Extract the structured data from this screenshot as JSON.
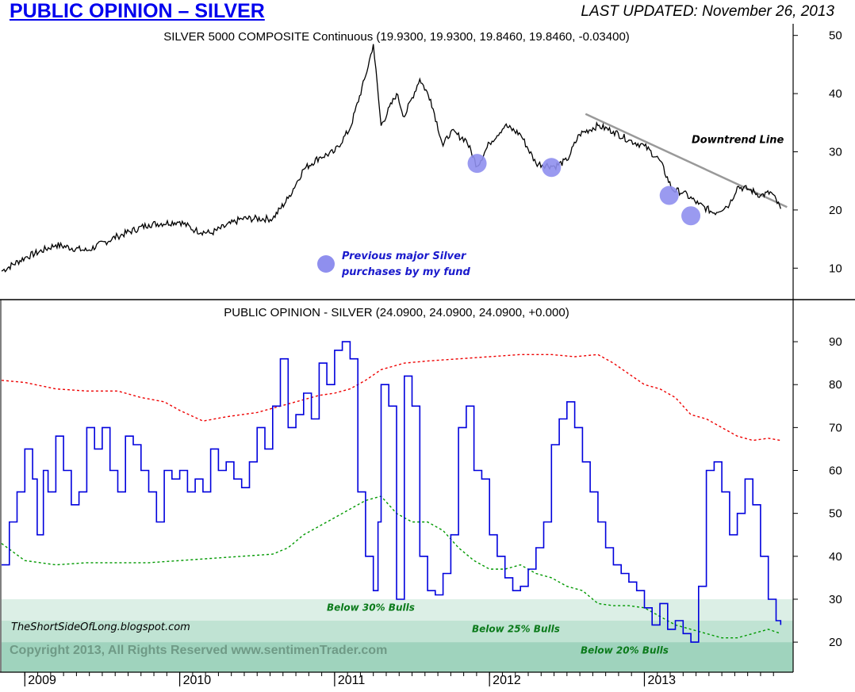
{
  "header": {
    "title": "PUBLIC OPINION – SILVER",
    "last_updated": "LAST UPDATED:  November 26, 2013"
  },
  "colors": {
    "price_line": "#000000",
    "opinion_line": "#0000dd",
    "upper_band": "#ee0000",
    "lower_band": "#009900",
    "circle_fill": "#8f8fee",
    "trendline": "#999999",
    "zone_30": "#dcefe6",
    "zone_25": "#c0e3d3",
    "zone_20": "#9fd3bd",
    "annotation_blue": "#1a1acc",
    "annotation_green": "#0a7a1a"
  },
  "chart_data": [
    {
      "type": "line",
      "title": "SILVER 5000 COMPOSITE Continuous (19.9300, 19.9300, 19.8460, 19.8460, -0.03400)",
      "ylim": [
        5,
        52
      ],
      "yticks": [
        10,
        20,
        30,
        40,
        50
      ],
      "series": [],
      "x": [
        2008.85,
        2009.0,
        2009.2,
        2009.4,
        2009.6,
        2009.8,
        2010.0,
        2010.1,
        2010.2,
        2010.4,
        2010.6,
        2010.7,
        2010.8,
        2010.9,
        2011.0,
        2011.1,
        2011.2,
        2011.25,
        2011.3,
        2011.4,
        2011.45,
        2011.55,
        2011.62,
        2011.7,
        2011.75,
        2011.85,
        2011.92,
        2012.0,
        2012.1,
        2012.2,
        2012.3,
        2012.42,
        2012.5,
        2012.58,
        2012.7,
        2012.8,
        2012.9,
        2013.0,
        2013.1,
        2013.18,
        2013.25,
        2013.35,
        2013.45,
        2013.55,
        2013.6,
        2013.68,
        2013.75,
        2013.82,
        2013.88
      ],
      "y": [
        9.5,
        11.8,
        14.0,
        13.0,
        15.5,
        17.5,
        18.0,
        16.5,
        16.0,
        18.5,
        18.5,
        22.0,
        27.0,
        29.0,
        30.0,
        34.0,
        43.0,
        48.5,
        34.5,
        40.0,
        36.0,
        42.5,
        39.0,
        31.0,
        33.5,
        32.0,
        27.5,
        31.5,
        34.5,
        33.0,
        28.0,
        27.5,
        28.5,
        33.0,
        34.5,
        33.5,
        32.0,
        31.0,
        28.5,
        23.5,
        23.0,
        21.0,
        19.5,
        21.0,
        24.0,
        23.5,
        22.5,
        23.0,
        20.2
      ],
      "trendline": {
        "label": "Downtrend Line",
        "x": [
          2012.62,
          2013.88
        ],
        "y": [
          36.5,
          20.5
        ]
      },
      "highlights": [
        {
          "x": 2011.92,
          "y": 28.0
        },
        {
          "x": 2012.4,
          "y": 27.3
        },
        {
          "x": 2013.16,
          "y": 22.5
        },
        {
          "x": 2013.3,
          "y": 19.0
        }
      ],
      "legend": {
        "label_line1": "Previous major Silver",
        "label_line2": "purchases by my fund"
      }
    },
    {
      "type": "line",
      "title": "PUBLIC OPINION - SILVER (24.0900, 24.0900, 24.0900, +0.000)",
      "ylim": [
        13,
        95
      ],
      "yticks": [
        20,
        30,
        40,
        50,
        60,
        70,
        80,
        90
      ],
      "xticks": [
        "2009",
        "2010",
        "2011",
        "2012",
        "2013"
      ],
      "series": [],
      "x": [
        2008.85,
        2008.9,
        2008.95,
        2009.0,
        2009.05,
        2009.08,
        2009.12,
        2009.15,
        2009.2,
        2009.25,
        2009.3,
        2009.35,
        2009.4,
        2009.45,
        2009.5,
        2009.55,
        2009.6,
        2009.65,
        2009.7,
        2009.75,
        2009.8,
        2009.85,
        2009.9,
        2009.95,
        2010.0,
        2010.05,
        2010.1,
        2010.15,
        2010.2,
        2010.25,
        2010.3,
        2010.35,
        2010.4,
        2010.45,
        2010.5,
        2010.55,
        2010.6,
        2010.65,
        2010.7,
        2010.75,
        2010.8,
        2010.85,
        2010.9,
        2010.95,
        2011.0,
        2011.05,
        2011.1,
        2011.15,
        2011.2,
        2011.25,
        2011.28,
        2011.3,
        2011.35,
        2011.4,
        2011.45,
        2011.5,
        2011.55,
        2011.6,
        2011.65,
        2011.7,
        2011.75,
        2011.8,
        2011.85,
        2011.9,
        2011.95,
        2012.0,
        2012.05,
        2012.1,
        2012.15,
        2012.2,
        2012.25,
        2012.3,
        2012.35,
        2012.4,
        2012.45,
        2012.5,
        2012.55,
        2012.6,
        2012.65,
        2012.7,
        2012.75,
        2012.8,
        2012.85,
        2012.9,
        2012.95,
        2013.0,
        2013.05,
        2013.1,
        2013.15,
        2013.2,
        2013.25,
        2013.3,
        2013.35,
        2013.4,
        2013.45,
        2013.5,
        2013.55,
        2013.6,
        2013.65,
        2013.7,
        2013.75,
        2013.8,
        2013.85,
        2013.88
      ],
      "y": [
        38,
        48,
        55,
        65,
        58,
        45,
        60,
        55,
        68,
        60,
        52,
        55,
        70,
        65,
        70,
        60,
        55,
        68,
        66,
        60,
        55,
        48,
        60,
        58,
        60,
        55,
        58,
        55,
        65,
        60,
        62,
        58,
        56,
        62,
        70,
        65,
        75,
        86,
        70,
        73,
        78,
        72,
        85,
        80,
        88,
        90,
        86,
        55,
        40,
        32,
        48,
        80,
        75,
        30,
        82,
        75,
        40,
        32,
        31,
        36,
        45,
        70,
        75,
        60,
        58,
        45,
        40,
        35,
        32,
        33,
        37,
        42,
        48,
        66,
        72,
        76,
        70,
        62,
        55,
        48,
        42,
        38,
        36,
        34,
        32,
        28,
        24,
        29,
        23,
        25,
        22,
        20,
        33,
        60,
        62,
        55,
        45,
        50,
        58,
        52,
        40,
        30,
        25,
        24
      ],
      "upper_band": {
        "x": [
          2008.85,
          2009.0,
          2009.2,
          2009.4,
          2009.6,
          2009.75,
          2009.9,
          2010.0,
          2010.15,
          2010.3,
          2010.5,
          2010.6,
          2010.75,
          2010.9,
          2011.0,
          2011.1,
          2011.2,
          2011.3,
          2011.45,
          2011.6,
          2011.8,
          2012.0,
          2012.2,
          2012.4,
          2012.55,
          2012.7,
          2012.8,
          2012.9,
          2013.0,
          2013.1,
          2013.2,
          2013.3,
          2013.4,
          2013.5,
          2013.6,
          2013.7,
          2013.8,
          2013.88
        ],
        "y": [
          81,
          80.5,
          79,
          78.5,
          78.5,
          77,
          76,
          74,
          71.5,
          72.5,
          73.5,
          74.5,
          76,
          77.5,
          78,
          79,
          81,
          83.5,
          85,
          85.5,
          86,
          86.5,
          87,
          87,
          86.5,
          87,
          85,
          82.5,
          80,
          79,
          77,
          73,
          72,
          70,
          68,
          67,
          67.5,
          67
        ]
      },
      "lower_band": {
        "x": [
          2008.85,
          2009.0,
          2009.2,
          2009.4,
          2009.6,
          2009.8,
          2010.0,
          2010.2,
          2010.4,
          2010.6,
          2010.7,
          2010.8,
          2010.9,
          2011.0,
          2011.1,
          2011.2,
          2011.3,
          2011.4,
          2011.5,
          2011.6,
          2011.7,
          2011.8,
          2011.9,
          2012.0,
          2012.1,
          2012.2,
          2012.3,
          2012.4,
          2012.5,
          2012.6,
          2012.7,
          2012.8,
          2012.9,
          2013.0,
          2013.1,
          2013.2,
          2013.3,
          2013.4,
          2013.5,
          2013.6,
          2013.7,
          2013.8,
          2013.88
        ],
        "y": [
          43,
          39,
          38,
          38.5,
          38.5,
          38.5,
          39,
          39.5,
          40,
          40.5,
          42,
          45,
          47,
          49,
          51,
          53,
          54,
          50,
          48,
          48,
          46,
          42,
          39,
          37,
          37,
          38,
          36,
          35,
          33,
          32,
          29,
          28.5,
          28.5,
          28,
          26,
          24,
          23,
          22,
          21,
          21,
          22,
          23,
          22
        ]
      },
      "zones": [
        {
          "label": "Below 30% Bulls",
          "top": 30,
          "bottom": 25
        },
        {
          "label": "Below 25% Bulls",
          "top": 25,
          "bottom": 20
        },
        {
          "label": "Below 20% Bulls",
          "top": 20,
          "bottom": 13
        }
      ]
    }
  ],
  "watermarks": {
    "blog": "TheShortSideOfLong.blogspot.com",
    "copyright": "Copyright 2013, All Rights Reserved  www.sentimenTrader.com"
  }
}
